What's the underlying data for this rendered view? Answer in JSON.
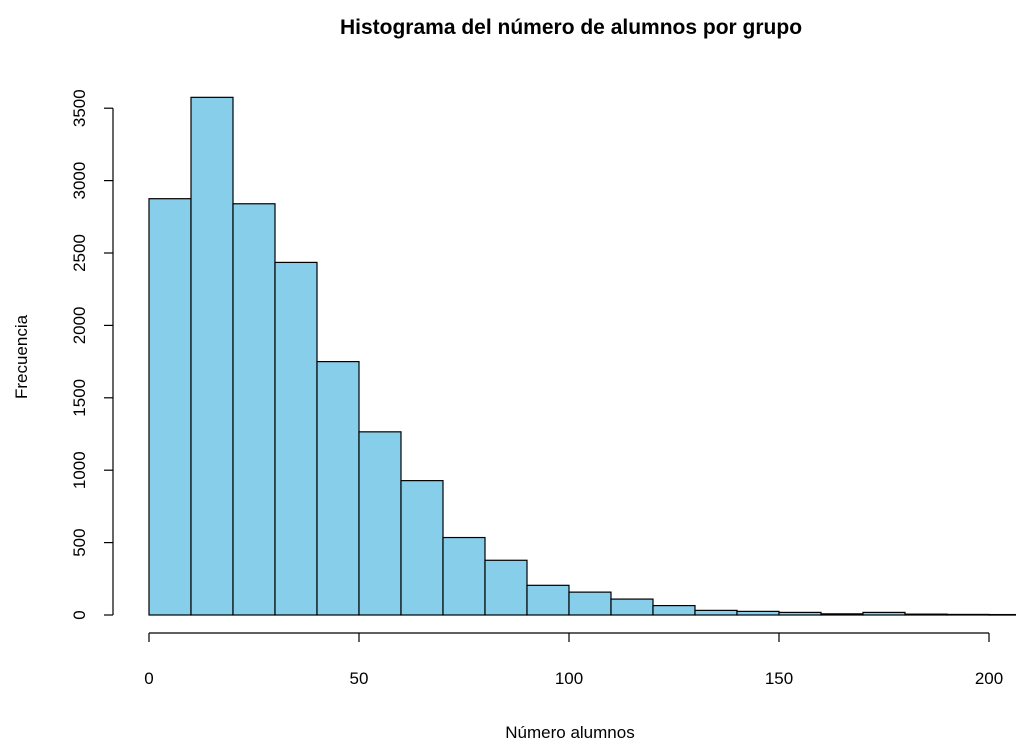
{
  "chart_data": {
    "type": "bar",
    "title": "Histograma del número de alumnos por grupo",
    "xlabel": "Número alumnos",
    "ylabel": "Frecuencia",
    "bin_edges": [
      0,
      10,
      20,
      30,
      40,
      50,
      60,
      70,
      80,
      90,
      100,
      110,
      120,
      130,
      140,
      150,
      160,
      170,
      180,
      190,
      200,
      210
    ],
    "values": [
      2875,
      3575,
      2840,
      2435,
      1750,
      1265,
      928,
      535,
      378,
      205,
      158,
      110,
      65,
      32,
      25,
      18,
      8,
      18,
      6,
      4,
      3
    ],
    "xlim": [
      0,
      210
    ],
    "ylim": [
      0,
      3600
    ],
    "xticks": [
      0,
      50,
      100,
      150,
      200
    ],
    "xtick_labels": [
      "0",
      "50",
      "100",
      "150",
      "200"
    ],
    "yticks": [
      0,
      500,
      1000,
      1500,
      2000,
      2500,
      3000,
      3500
    ],
    "ytick_labels": [
      "0",
      "500",
      "1000",
      "1500",
      "2000",
      "2500",
      "3000",
      "3500"
    ],
    "bar_color": "#87CEEB",
    "edge_color": "#000000",
    "grid": false
  }
}
